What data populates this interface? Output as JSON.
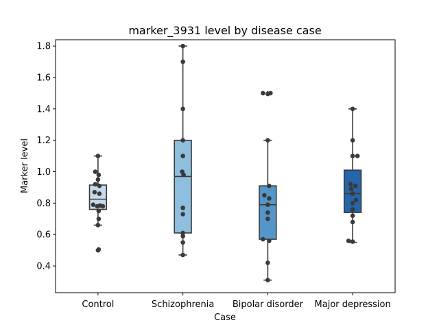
{
  "chart_data": {
    "type": "box",
    "title": "marker_3931 level by disease case",
    "xlabel": "Case",
    "ylabel": "Marker level",
    "ylim": [
      0.23,
      1.84
    ],
    "yticks": [
      0.4,
      0.6,
      0.8,
      1.0,
      1.2,
      1.4,
      1.6,
      1.8
    ],
    "ytick_labels": [
      "0.4",
      "0.6",
      "0.8",
      "1.0",
      "1.2",
      "1.4",
      "1.6",
      "1.8"
    ],
    "grid": false,
    "legend": "none",
    "categories": [
      "Control",
      "Schizophrenia",
      "Bipolar disorder",
      "Major depression"
    ],
    "box_colors": [
      "#c5daea",
      "#8fbfdf",
      "#5596c8",
      "#2565a8"
    ],
    "edge_color": "#3a3a3a",
    "point_color": "#3a3a3a",
    "boxes": [
      {
        "category": "Control",
        "whisker_low": 0.66,
        "q1": 0.76,
        "median": 0.825,
        "q3": 0.915,
        "whisker_high": 1.1,
        "outliers": [
          0.5,
          0.505
        ]
      },
      {
        "category": "Schizophrenia",
        "whisker_low": 0.47,
        "q1": 0.61,
        "median": 0.97,
        "q3": 1.2,
        "whisker_high": 1.8,
        "outliers": []
      },
      {
        "category": "Bipolar disorder",
        "whisker_low": 0.31,
        "q1": 0.57,
        "median": 0.79,
        "q3": 0.91,
        "whisker_high": 1.2,
        "outliers": [
          1.5,
          1.5,
          1.495
        ]
      },
      {
        "category": "Major depression",
        "whisker_low": 0.55,
        "q1": 0.74,
        "median": 0.86,
        "q3": 1.01,
        "whisker_high": 1.4,
        "outliers": []
      }
    ],
    "points": [
      {
        "category": "Control",
        "values": [
          1.1,
          1.0,
          0.98,
          0.95,
          0.92,
          0.91,
          0.87,
          0.86,
          0.79,
          0.785,
          0.78,
          0.78,
          0.75,
          0.7,
          0.66,
          0.5,
          0.505
        ],
        "jitter": [
          0,
          -4,
          1,
          0,
          -4,
          2,
          -5,
          2,
          -7,
          3,
          -1,
          7,
          1,
          1,
          0,
          0,
          1
        ]
      },
      {
        "category": "Schizophrenia",
        "values": [
          1.8,
          1.7,
          1.4,
          1.2,
          1.1,
          1.0,
          0.98,
          0.77,
          0.73,
          0.61,
          0.59,
          0.55,
          0.47
        ],
        "jitter": [
          0,
          0,
          0,
          0,
          0,
          -1,
          1,
          0,
          0,
          0,
          0,
          0,
          0
        ]
      },
      {
        "category": "Bipolar disorder",
        "values": [
          1.5,
          1.5,
          1.495,
          1.2,
          0.91,
          0.85,
          0.83,
          0.79,
          0.74,
          0.7,
          0.57,
          0.56,
          0.42,
          0.31
        ],
        "jitter": [
          -7,
          4,
          0,
          0,
          2,
          -5,
          2,
          0,
          0,
          0,
          -7,
          2,
          0,
          0
        ]
      },
      {
        "category": "Major depression",
        "values": [
          1.4,
          1.2,
          1.1,
          1.1,
          0.92,
          0.91,
          0.89,
          0.86,
          0.82,
          0.8,
          0.76,
          0.72,
          0.68,
          0.56,
          0.555
        ],
        "jitter": [
          0,
          0,
          0,
          7,
          -3,
          4,
          -2,
          0,
          5,
          0,
          0,
          0,
          0,
          -6,
          0
        ]
      }
    ]
  }
}
